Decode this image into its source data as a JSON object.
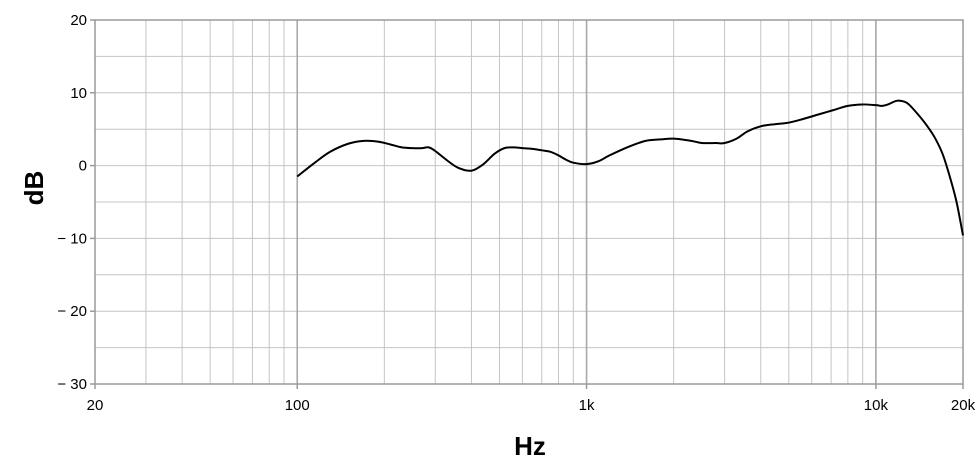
{
  "chart_data": {
    "type": "line",
    "title": "",
    "xlabel": "Hz",
    "ylabel": "dB",
    "x_scale": "log",
    "xlim": [
      20,
      20000
    ],
    "ylim": [
      -30,
      20
    ],
    "grid": true,
    "x_ticks": [
      {
        "value": 20,
        "label": "20"
      },
      {
        "value": 100,
        "label": "100"
      },
      {
        "value": 1000,
        "label": "1k"
      },
      {
        "value": 10000,
        "label": "10k"
      },
      {
        "value": 20000,
        "label": "20k"
      }
    ],
    "y_ticks": [
      {
        "value": 20,
        "label": "20"
      },
      {
        "value": 10,
        "label": "10"
      },
      {
        "value": 0,
        "label": "0"
      },
      {
        "value": -10,
        "label": "− 10"
      },
      {
        "value": -20,
        "label": "− 20"
      },
      {
        "value": -30,
        "label": "− 30"
      }
    ],
    "series": [
      {
        "color": "#000000",
        "x": [
          100,
          115,
          130,
          150,
          170,
          190,
          210,
          230,
          250,
          270,
          285,
          300,
          330,
          360,
          400,
          440,
          480,
          520,
          560,
          600,
          650,
          700,
          750,
          800,
          850,
          900,
          1000,
          1100,
          1200,
          1400,
          1600,
          1800,
          2000,
          2300,
          2500,
          2800,
          3000,
          3300,
          3600,
          4000,
          4500,
          5000,
          5600,
          6300,
          7100,
          8000,
          9000,
          10000,
          10500,
          11000,
          11800,
          12500,
          13000,
          14000,
          15000,
          16000,
          17000,
          18000,
          19000,
          20000
        ],
        "y": [
          -1.5,
          0.4,
          1.9,
          3.0,
          3.4,
          3.3,
          2.9,
          2.5,
          2.4,
          2.4,
          2.5,
          2.0,
          0.7,
          -0.3,
          -0.7,
          0.2,
          1.6,
          2.4,
          2.5,
          2.4,
          2.3,
          2.1,
          1.9,
          1.4,
          0.8,
          0.4,
          0.2,
          0.6,
          1.4,
          2.6,
          3.4,
          3.6,
          3.7,
          3.4,
          3.1,
          3.1,
          3.1,
          3.7,
          4.7,
          5.4,
          5.7,
          5.9,
          6.4,
          7.0,
          7.6,
          8.2,
          8.4,
          8.3,
          8.2,
          8.4,
          8.9,
          8.8,
          8.4,
          7.0,
          5.5,
          3.8,
          1.6,
          -1.5,
          -5.0,
          -9.6
        ]
      }
    ]
  }
}
